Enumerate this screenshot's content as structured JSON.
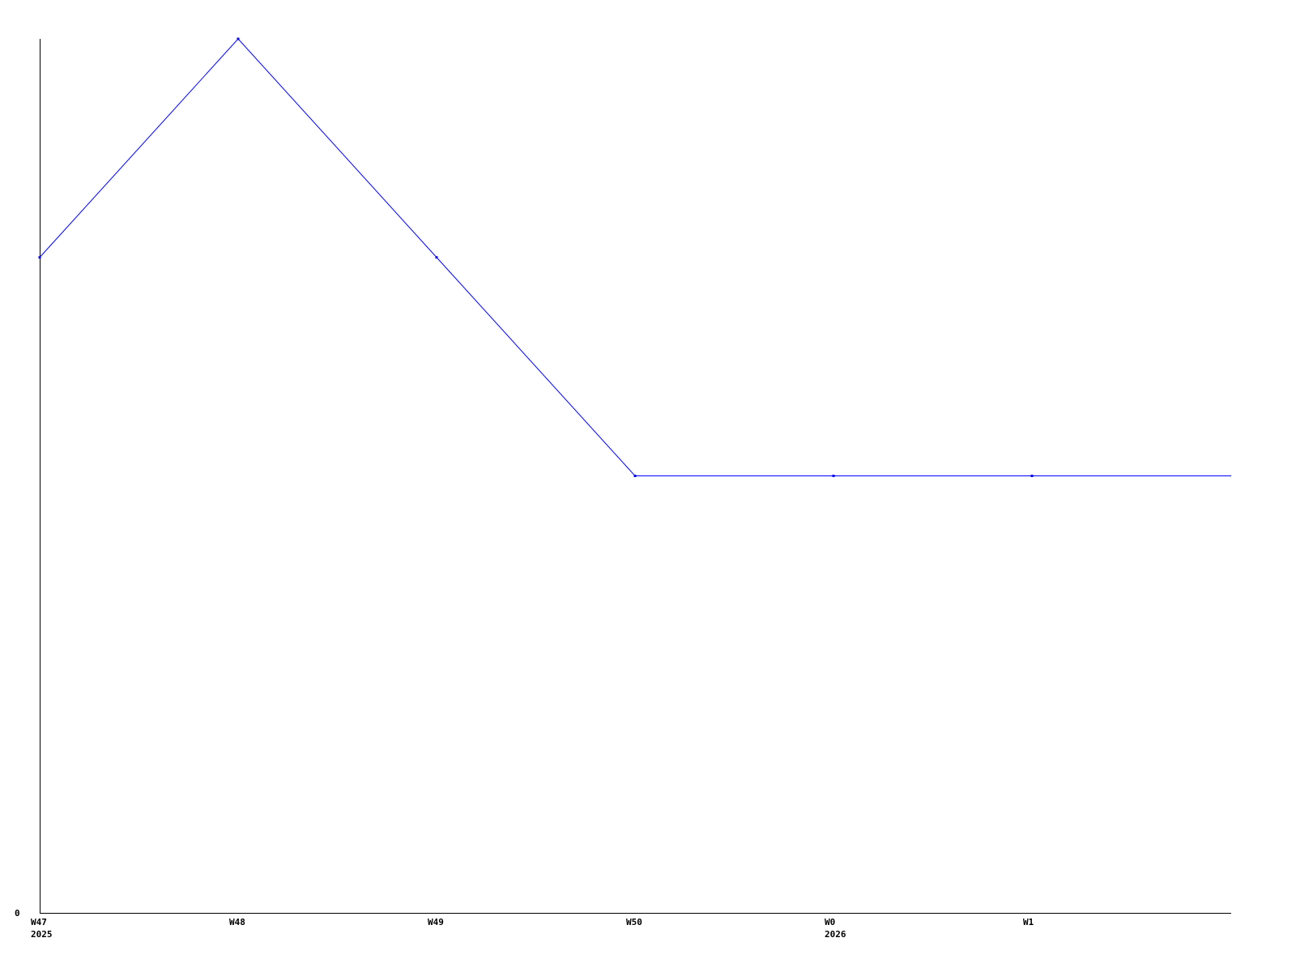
{
  "chart_data": {
    "type": "line",
    "title": "",
    "xlabel": "",
    "ylabel": "",
    "categories": [
      "W47",
      "W48",
      "W49",
      "W50",
      "W0",
      "W1"
    ],
    "category_sublabels": [
      "2025",
      "",
      "",
      "",
      "2026",
      ""
    ],
    "series": [
      {
        "values": [
          3,
          4,
          3,
          2,
          2,
          2
        ],
        "color": "#0000ff"
      }
    ],
    "y_ticks": [
      "0"
    ],
    "ylim": [
      0,
      4
    ],
    "grid": false,
    "legend": "none",
    "line_extends_past_last_point": true
  }
}
